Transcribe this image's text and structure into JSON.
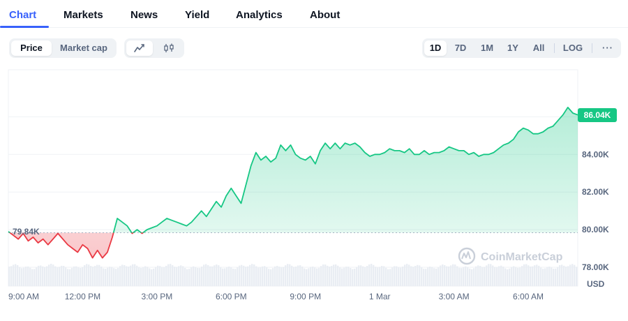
{
  "nav": {
    "tabs": [
      {
        "label": "Chart",
        "active": true
      },
      {
        "label": "Markets",
        "active": false
      },
      {
        "label": "News",
        "active": false
      },
      {
        "label": "Yield",
        "active": false
      },
      {
        "label": "Analytics",
        "active": false
      },
      {
        "label": "About",
        "active": false
      }
    ]
  },
  "toolbar": {
    "metric": {
      "options": [
        "Price",
        "Market cap"
      ],
      "selected": "Price"
    },
    "chart_style": {
      "options": [
        "line-chart-icon",
        "candlestick-icon"
      ],
      "selected": "line-chart-icon"
    },
    "ranges": {
      "options": [
        "1D",
        "7D",
        "1M",
        "1Y",
        "All"
      ],
      "selected": "1D"
    },
    "log_label": "LOG",
    "more_label": "···"
  },
  "colors": {
    "accent": "#3861fb",
    "up": "#16c784",
    "down": "#ea3943"
  },
  "chart_data": {
    "type": "area",
    "currency_label": "USD",
    "current_price_label": "86.04K",
    "open_price_label": "79.84K",
    "open_price": 79.84,
    "watermark": "CoinMarketCap",
    "ylim": [
      77,
      88.5
    ],
    "y_ticks": [
      {
        "value": 78,
        "label": "78.00K"
      },
      {
        "value": 80,
        "label": "80.00K"
      },
      {
        "value": 82,
        "label": "82.00K"
      },
      {
        "value": 84,
        "label": "84.00K"
      }
    ],
    "x_ticks": [
      {
        "t": 0,
        "label": "9:00 AM"
      },
      {
        "t": 3,
        "label": "12:00 PM"
      },
      {
        "t": 6,
        "label": "3:00 PM"
      },
      {
        "t": 9,
        "label": "6:00 PM"
      },
      {
        "t": 12,
        "label": "9:00 PM"
      },
      {
        "t": 15,
        "label": "1 Mar"
      },
      {
        "t": 18,
        "label": "3:00 AM"
      },
      {
        "t": 21,
        "label": "6:00 AM"
      }
    ],
    "series": [
      {
        "values": [
          [
            0.0,
            79.9
          ],
          [
            0.2,
            79.7
          ],
          [
            0.4,
            79.5
          ],
          [
            0.6,
            79.8
          ],
          [
            0.8,
            79.4
          ],
          [
            1.0,
            79.6
          ],
          [
            1.2,
            79.3
          ],
          [
            1.4,
            79.5
          ],
          [
            1.6,
            79.2
          ],
          [
            1.8,
            79.5
          ],
          [
            2.0,
            79.8
          ],
          [
            2.2,
            79.5
          ],
          [
            2.4,
            79.2
          ],
          [
            2.6,
            79.0
          ],
          [
            2.8,
            78.8
          ],
          [
            3.0,
            79.2
          ],
          [
            3.2,
            79.0
          ],
          [
            3.4,
            78.5
          ],
          [
            3.6,
            78.9
          ],
          [
            3.8,
            78.5
          ],
          [
            4.0,
            78.8
          ],
          [
            4.2,
            79.6
          ],
          [
            4.4,
            80.6
          ],
          [
            4.6,
            80.4
          ],
          [
            4.8,
            80.2
          ],
          [
            5.0,
            79.8
          ],
          [
            5.2,
            80.0
          ],
          [
            5.4,
            79.8
          ],
          [
            5.6,
            80.0
          ],
          [
            5.8,
            80.1
          ],
          [
            6.0,
            80.2
          ],
          [
            6.2,
            80.4
          ],
          [
            6.4,
            80.6
          ],
          [
            6.6,
            80.5
          ],
          [
            6.8,
            80.4
          ],
          [
            7.0,
            80.3
          ],
          [
            7.2,
            80.2
          ],
          [
            7.4,
            80.4
          ],
          [
            7.6,
            80.7
          ],
          [
            7.8,
            81.0
          ],
          [
            8.0,
            80.7
          ],
          [
            8.2,
            81.1
          ],
          [
            8.4,
            81.5
          ],
          [
            8.6,
            81.2
          ],
          [
            8.8,
            81.8
          ],
          [
            9.0,
            82.2
          ],
          [
            9.2,
            81.8
          ],
          [
            9.4,
            81.4
          ],
          [
            9.6,
            82.4
          ],
          [
            9.8,
            83.4
          ],
          [
            10.0,
            84.1
          ],
          [
            10.2,
            83.7
          ],
          [
            10.4,
            83.9
          ],
          [
            10.6,
            83.6
          ],
          [
            10.8,
            83.8
          ],
          [
            11.0,
            84.5
          ],
          [
            11.2,
            84.2
          ],
          [
            11.4,
            84.5
          ],
          [
            11.6,
            84.0
          ],
          [
            11.8,
            83.8
          ],
          [
            12.0,
            83.7
          ],
          [
            12.2,
            83.9
          ],
          [
            12.4,
            83.5
          ],
          [
            12.6,
            84.2
          ],
          [
            12.8,
            84.6
          ],
          [
            13.0,
            84.3
          ],
          [
            13.2,
            84.6
          ],
          [
            13.4,
            84.3
          ],
          [
            13.6,
            84.6
          ],
          [
            13.8,
            84.5
          ],
          [
            14.0,
            84.6
          ],
          [
            14.2,
            84.4
          ],
          [
            14.4,
            84.1
          ],
          [
            14.6,
            83.9
          ],
          [
            14.8,
            84.0
          ],
          [
            15.0,
            84.0
          ],
          [
            15.2,
            84.1
          ],
          [
            15.4,
            84.3
          ],
          [
            15.6,
            84.2
          ],
          [
            15.8,
            84.2
          ],
          [
            16.0,
            84.1
          ],
          [
            16.2,
            84.3
          ],
          [
            16.4,
            84.0
          ],
          [
            16.6,
            84.0
          ],
          [
            16.8,
            84.2
          ],
          [
            17.0,
            84.0
          ],
          [
            17.2,
            84.1
          ],
          [
            17.4,
            84.1
          ],
          [
            17.6,
            84.2
          ],
          [
            17.8,
            84.4
          ],
          [
            18.0,
            84.3
          ],
          [
            18.2,
            84.2
          ],
          [
            18.4,
            84.2
          ],
          [
            18.6,
            84.0
          ],
          [
            18.8,
            84.1
          ],
          [
            19.0,
            83.9
          ],
          [
            19.2,
            84.0
          ],
          [
            19.4,
            84.0
          ],
          [
            19.6,
            84.1
          ],
          [
            19.8,
            84.3
          ],
          [
            20.0,
            84.5
          ],
          [
            20.2,
            84.6
          ],
          [
            20.4,
            84.8
          ],
          [
            20.6,
            85.2
          ],
          [
            20.8,
            85.4
          ],
          [
            21.0,
            85.3
          ],
          [
            21.2,
            85.1
          ],
          [
            21.4,
            85.1
          ],
          [
            21.6,
            85.2
          ],
          [
            21.8,
            85.4
          ],
          [
            22.0,
            85.5
          ],
          [
            22.2,
            85.8
          ],
          [
            22.4,
            86.1
          ],
          [
            22.6,
            86.5
          ],
          [
            22.8,
            86.2
          ],
          [
            23.0,
            86.1
          ]
        ]
      }
    ]
  }
}
